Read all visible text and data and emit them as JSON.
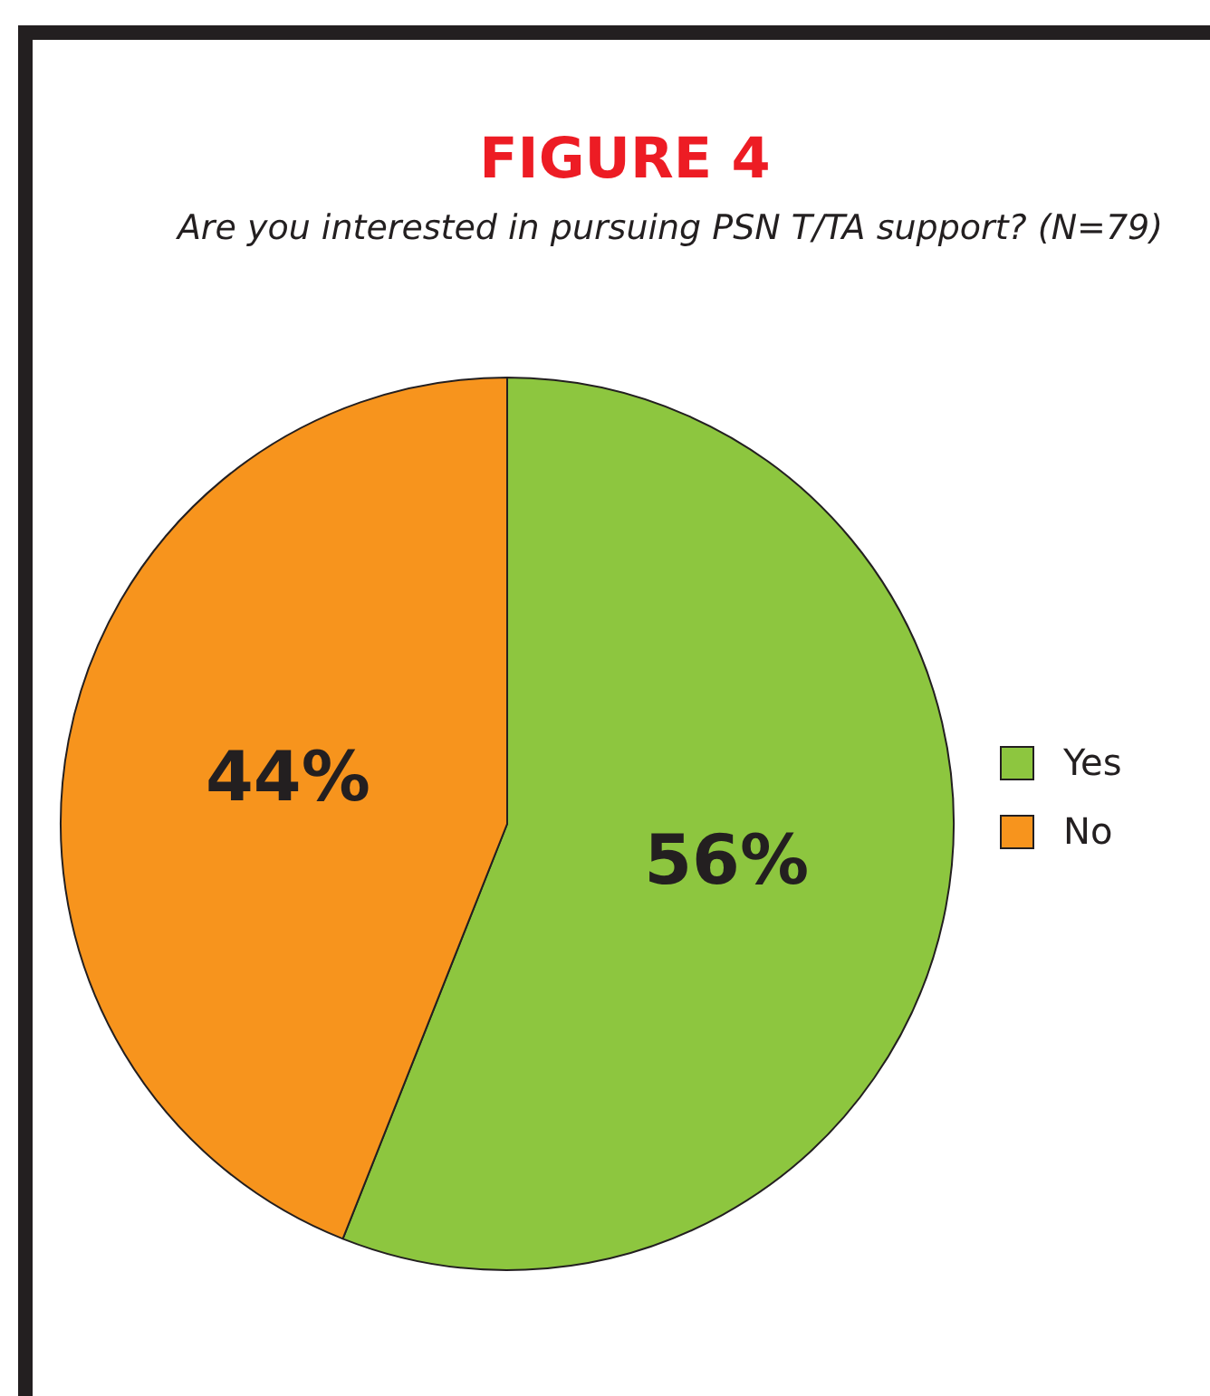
{
  "chart_data": {
    "type": "pie",
    "title": "FIGURE 4",
    "subtitle": "Are you interested in pursuing PSN T/TA support? (N=79)",
    "categories": [
      "Yes",
      "No"
    ],
    "values": [
      56,
      44
    ],
    "colors": [
      "#8dc63f",
      "#f7941d"
    ],
    "value_labels": [
      "56%",
      "44%"
    ],
    "legend": "right"
  }
}
